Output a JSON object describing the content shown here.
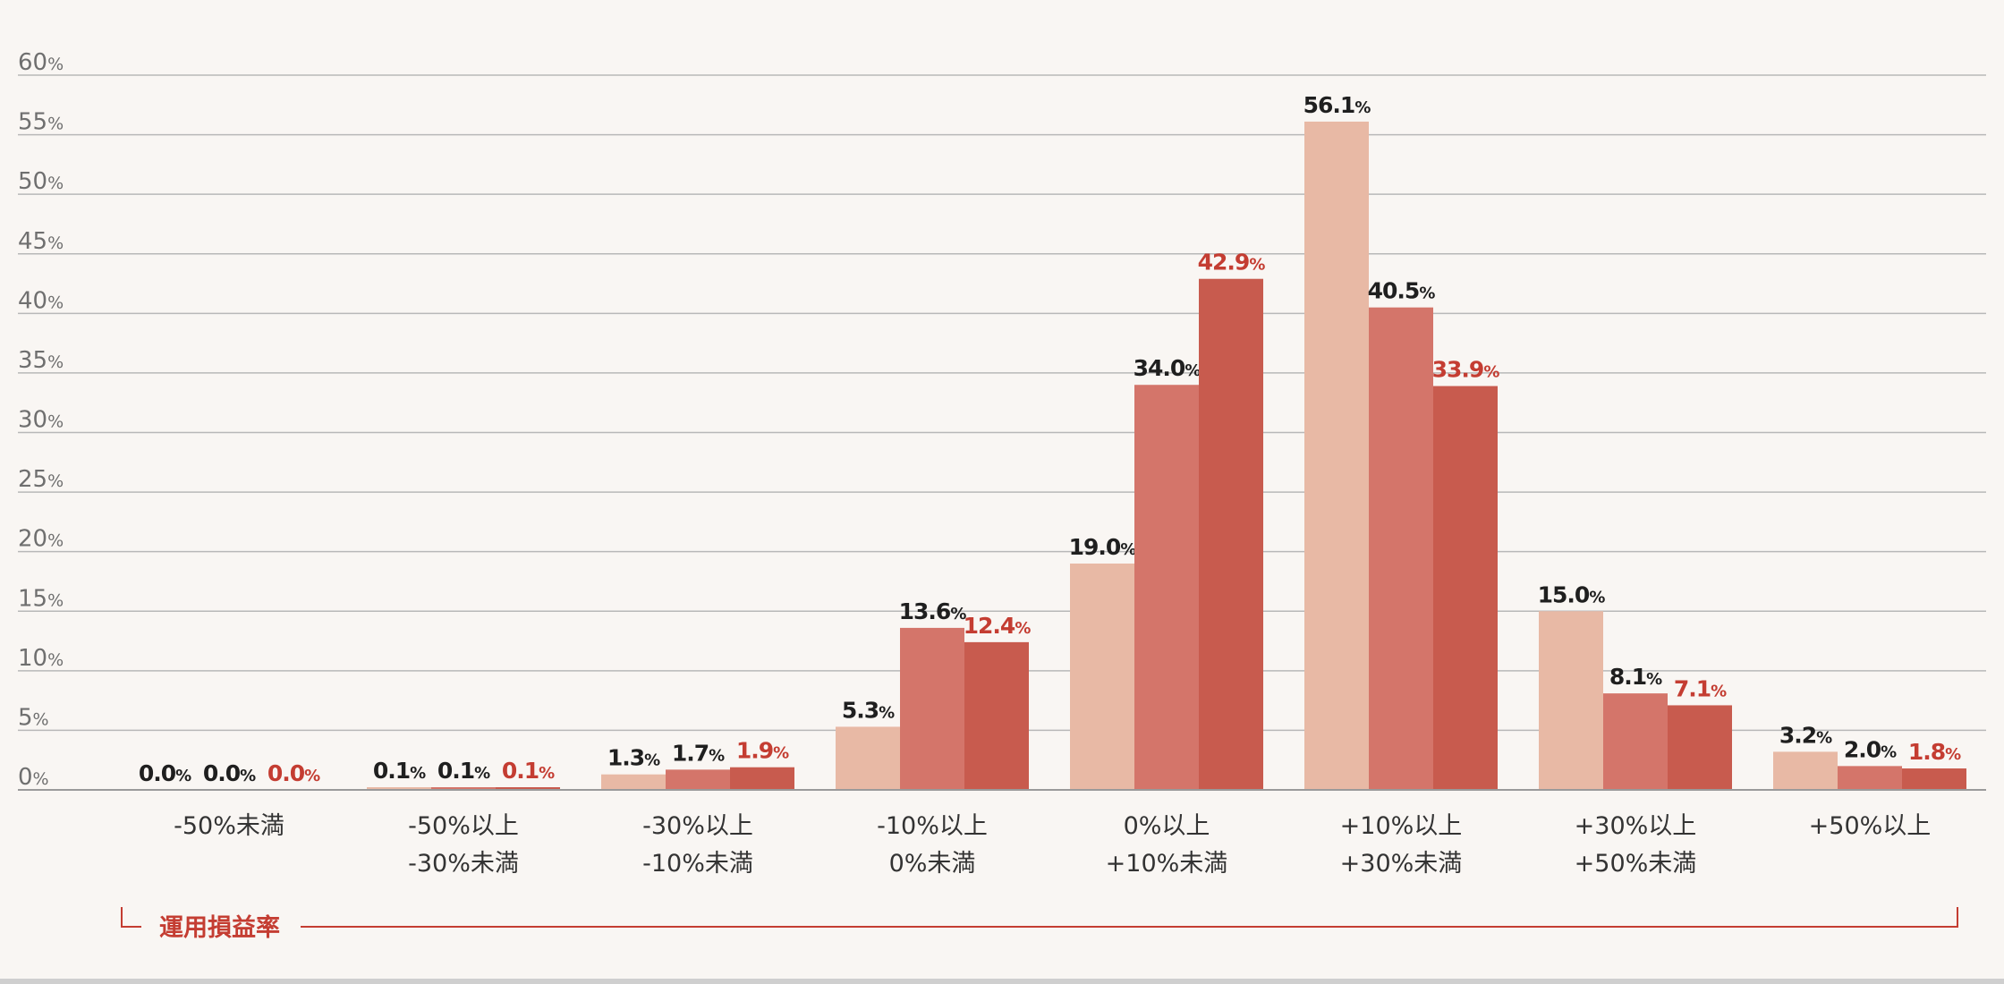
{
  "chart_data": {
    "type": "bar",
    "title": "",
    "xlabel": "運用損益率",
    "ylabel": "",
    "ylim": [
      0,
      60
    ],
    "yticks": [
      {
        "value": 0,
        "label": "0%"
      },
      {
        "value": 5,
        "label": "5%"
      },
      {
        "value": 10,
        "label": "10%"
      },
      {
        "value": 15,
        "label": "15%"
      },
      {
        "value": 20,
        "label": "20%"
      },
      {
        "value": 25,
        "label": "25%"
      },
      {
        "value": 30,
        "label": "30%"
      },
      {
        "value": 35,
        "label": "35%"
      },
      {
        "value": 40,
        "label": "40%"
      },
      {
        "value": 45,
        "label": "45%"
      },
      {
        "value": 50,
        "label": "50%"
      },
      {
        "value": 55,
        "label": "55%"
      },
      {
        "value": 60,
        "label": "60%"
      }
    ],
    "grid": true,
    "legend": "none",
    "categories": [
      [
        "-50%未満"
      ],
      [
        "-50%以上",
        "-30%未満"
      ],
      [
        "-30%以上",
        "-10%未満"
      ],
      [
        "-10%以上",
        "0%未満"
      ],
      [
        "0%以上",
        "+10%未満"
      ],
      [
        "+10%以上",
        "+30%未満"
      ],
      [
        "+30%以上",
        "+50%未満"
      ],
      [
        "+50%以上"
      ]
    ],
    "series": [
      {
        "values": [
          0.0,
          0.1,
          1.3,
          5.3,
          19.0,
          56.1,
          15.0,
          3.2
        ],
        "color": "#e8b9a5",
        "label_color": "#1f1f1f"
      },
      {
        "values": [
          0.0,
          0.1,
          1.7,
          13.6,
          34.0,
          40.5,
          8.1,
          2.0
        ],
        "color": "#d4756a",
        "label_color": "#1f1f1f"
      },
      {
        "values": [
          0.0,
          0.1,
          1.9,
          12.4,
          42.9,
          33.9,
          7.1,
          1.8
        ],
        "color": "#c85b4e",
        "label_color": "#c43d32"
      }
    ],
    "value_suffix": "%",
    "colors": {
      "background": "#f9f6f3",
      "grid": "#b8b8b8",
      "tick_text": "#6f6f6f",
      "category_text": "#333333",
      "bracket": "#c43d32"
    }
  }
}
